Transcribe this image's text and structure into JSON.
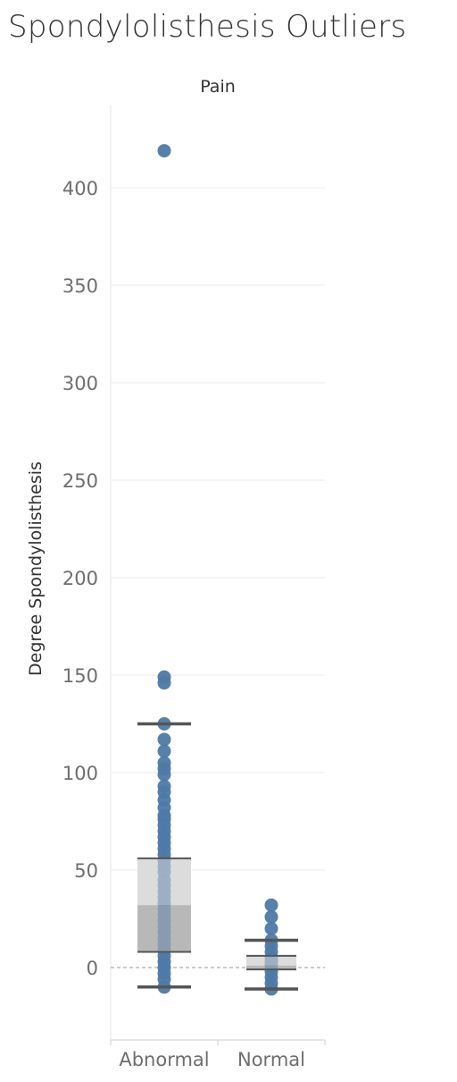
{
  "title": "Spondylolisthesis Outliers",
  "chart_data": {
    "type": "box-and-whisker with dot strip",
    "panel_header": "Pain",
    "ylabel": "Degree Spondylolisthesis",
    "ylim": [
      -37,
      436
    ],
    "yticks": [
      0,
      50,
      100,
      150,
      200,
      250,
      300,
      350,
      400
    ],
    "grid": "horizontal",
    "zero_line": "dashed",
    "categories": [
      "Abnormal",
      "Normal"
    ],
    "boxes": [
      {
        "category": "Abnormal",
        "whisker_low": -10,
        "q1": 8,
        "median": 32,
        "q3": 56,
        "whisker_high": 125
      },
      {
        "category": "Normal",
        "whisker_low": -11,
        "q1": -1,
        "median": 1,
        "q3": 6,
        "whisker_high": 14
      }
    ],
    "points": [
      {
        "category": "Abnormal",
        "values": [
          419,
          149,
          146,
          125,
          117,
          111,
          105,
          102,
          99,
          93,
          90,
          86,
          82,
          78,
          76,
          73,
          70,
          67,
          64,
          61,
          58,
          55,
          52,
          49,
          45,
          42,
          39,
          36,
          33,
          30,
          27,
          24,
          21,
          18,
          15,
          12,
          9,
          6,
          3,
          0,
          -3,
          -6,
          -10
        ]
      },
      {
        "category": "Normal",
        "values": [
          32,
          26,
          20,
          14,
          11,
          8,
          5,
          3,
          1,
          -2,
          -5,
          -8,
          -11
        ]
      }
    ],
    "colors": {
      "points": "#4e79a7",
      "box_upper": "#dcdcdc",
      "box_lower": "#b8b8b8",
      "whisker": "#555555",
      "grid": "#ebebeb"
    }
  }
}
